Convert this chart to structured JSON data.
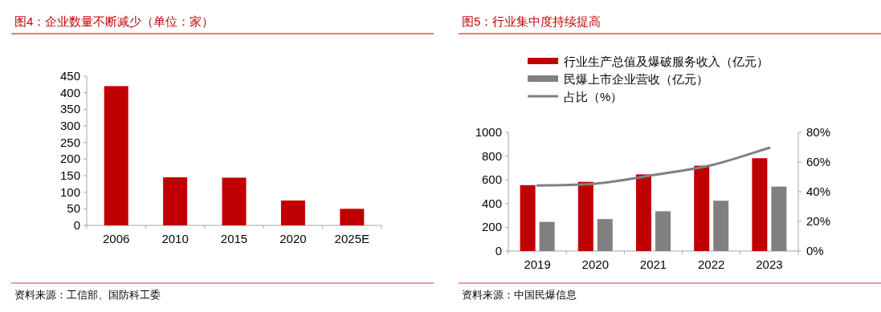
{
  "chart_data": [
    {
      "type": "bar",
      "title": "图4：企业数量不断减少（单位：家）",
      "categories": [
        "2006",
        "2010",
        "2015",
        "2020",
        "2025E"
      ],
      "values": [
        420,
        145,
        144,
        75,
        50
      ],
      "color": "#c00000",
      "ylim": [
        0,
        450
      ],
      "yticks": [
        0,
        50,
        100,
        150,
        200,
        250,
        300,
        350,
        400,
        450
      ],
      "legend": false,
      "annotations": [
        "资料来源：工信部、国防科工委"
      ]
    },
    {
      "type": "bar",
      "title": "图5：行业集中度持续提高",
      "categories": [
        "2019",
        "2020",
        "2021",
        "2022",
        "2023"
      ],
      "series": [
        {
          "name": "行业生产总值及爆破服务收入（亿元）",
          "color": "#c00000",
          "values": [
            555,
            583,
            646,
            719,
            782
          ]
        },
        {
          "name": "民爆上市企业营收（亿元）",
          "color": "#808080",
          "values": [
            246,
            269,
            335,
            424,
            543
          ]
        },
        {
          "name": "占比（%）",
          "type": "line",
          "axis": "y2",
          "color": "#808080",
          "values": [
            44.2,
            45.4,
            51.2,
            57.8,
            69.6
          ]
        }
      ],
      "ylim": [
        0,
        1000
      ],
      "yticks": [
        0,
        200,
        400,
        600,
        800,
        1000
      ],
      "y2lim": [
        0,
        80
      ],
      "y2ticks": [
        {
          "value": 0,
          "label": "0%"
        },
        {
          "value": 20,
          "label": "20%"
        },
        {
          "value": 40,
          "label": "40%"
        },
        {
          "value": 60,
          "label": "60%"
        },
        {
          "value": 80,
          "label": "80%"
        }
      ],
      "legend": "top",
      "annotations": [
        "资料来源：中国民爆信息"
      ]
    }
  ]
}
